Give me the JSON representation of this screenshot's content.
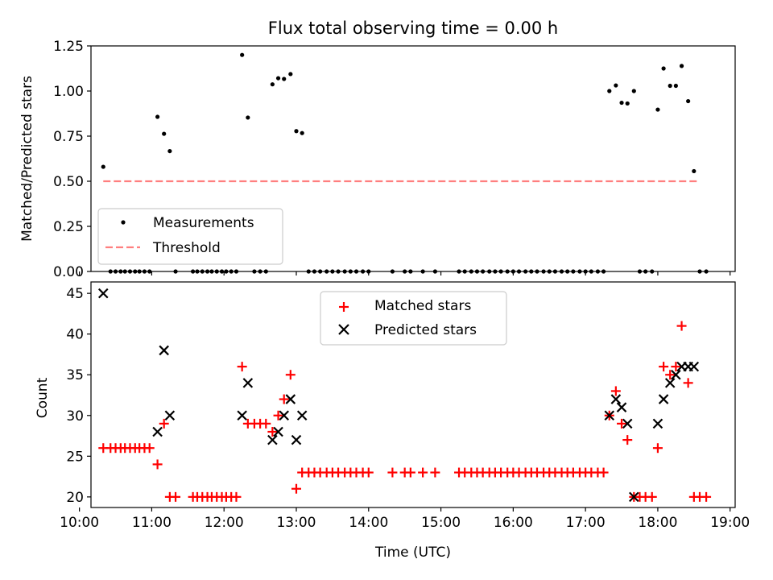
{
  "chart_data": [
    {
      "type": "scatter",
      "title": "Flux total observing time = 0.00 h",
      "xlabel": "",
      "ylabel": "Matched/Predicted stars",
      "xlim": [
        10.16,
        19.07
      ],
      "ylim": [
        0,
        1.25
      ],
      "x_ticks": [
        10,
        11,
        12,
        13,
        14,
        15,
        16,
        17,
        18,
        19
      ],
      "y_ticks": [
        0,
        0.25,
        0.5,
        0.75,
        1.0,
        1.25
      ],
      "y_tick_labels": [
        "0.00",
        "0.25",
        "0.50",
        "0.75",
        "1.00",
        "1.25"
      ],
      "legend_position": "lower-left",
      "series": [
        {
          "name": "Measurements",
          "marker": "dot",
          "color": "#000000",
          "points": [
            [
              10.33,
              0.58
            ],
            [
              10.43,
              0.0
            ],
            [
              10.5,
              0.0
            ],
            [
              10.57,
              0.0
            ],
            [
              10.63,
              0.0
            ],
            [
              10.7,
              0.0
            ],
            [
              10.77,
              0.0
            ],
            [
              10.83,
              0.0
            ],
            [
              10.9,
              0.0
            ],
            [
              10.97,
              0.0
            ],
            [
              11.08,
              0.857
            ],
            [
              11.17,
              0.763
            ],
            [
              11.25,
              0.667
            ],
            [
              11.33,
              0.0
            ],
            [
              11.57,
              0.0
            ],
            [
              11.63,
              0.0
            ],
            [
              11.7,
              0.0
            ],
            [
              11.77,
              0.0
            ],
            [
              11.83,
              0.0
            ],
            [
              11.9,
              0.0
            ],
            [
              11.97,
              0.0
            ],
            [
              12.03,
              0.0
            ],
            [
              12.1,
              0.0
            ],
            [
              12.17,
              0.0
            ],
            [
              12.25,
              1.2
            ],
            [
              12.33,
              0.853
            ],
            [
              12.42,
              0.0
            ],
            [
              12.5,
              0.0
            ],
            [
              12.58,
              0.0
            ],
            [
              12.67,
              1.037
            ],
            [
              12.75,
              1.071
            ],
            [
              12.83,
              1.067
            ],
            [
              12.92,
              1.094
            ],
            [
              13.0,
              0.778
            ],
            [
              13.08,
              0.767
            ],
            [
              13.17,
              0.0
            ],
            [
              13.25,
              0.0
            ],
            [
              13.33,
              0.0
            ],
            [
              13.42,
              0.0
            ],
            [
              13.5,
              0.0
            ],
            [
              13.58,
              0.0
            ],
            [
              13.67,
              0.0
            ],
            [
              13.75,
              0.0
            ],
            [
              13.83,
              0.0
            ],
            [
              13.92,
              0.0
            ],
            [
              14.0,
              0.0
            ],
            [
              14.33,
              0.0
            ],
            [
              14.5,
              0.0
            ],
            [
              14.58,
              0.0
            ],
            [
              14.75,
              0.0
            ],
            [
              14.92,
              0.0
            ],
            [
              15.25,
              0.0
            ],
            [
              15.33,
              0.0
            ],
            [
              15.42,
              0.0
            ],
            [
              15.5,
              0.0
            ],
            [
              15.58,
              0.0
            ],
            [
              15.67,
              0.0
            ],
            [
              15.75,
              0.0
            ],
            [
              15.83,
              0.0
            ],
            [
              15.92,
              0.0
            ],
            [
              16.0,
              0.0
            ],
            [
              16.08,
              0.0
            ],
            [
              16.17,
              0.0
            ],
            [
              16.25,
              0.0
            ],
            [
              16.33,
              0.0
            ],
            [
              16.42,
              0.0
            ],
            [
              16.5,
              0.0
            ],
            [
              16.58,
              0.0
            ],
            [
              16.67,
              0.0
            ],
            [
              16.75,
              0.0
            ],
            [
              16.83,
              0.0
            ],
            [
              16.92,
              0.0
            ],
            [
              17.0,
              0.0
            ],
            [
              17.08,
              0.0
            ],
            [
              17.17,
              0.0
            ],
            [
              17.25,
              0.0
            ],
            [
              17.33,
              1.0
            ],
            [
              17.42,
              1.031
            ],
            [
              17.5,
              0.935
            ],
            [
              17.58,
              0.931
            ],
            [
              17.67,
              1.0
            ],
            [
              17.75,
              0.0
            ],
            [
              17.83,
              0.0
            ],
            [
              17.92,
              0.0
            ],
            [
              18.0,
              0.897
            ],
            [
              18.08,
              1.125
            ],
            [
              18.17,
              1.029
            ],
            [
              18.25,
              1.029
            ],
            [
              18.33,
              1.139
            ],
            [
              18.42,
              0.944
            ],
            [
              18.5,
              0.556
            ],
            [
              18.58,
              0.0
            ],
            [
              18.67,
              0.0
            ]
          ]
        },
        {
          "name": "Threshold",
          "marker": "dashed-line",
          "color": "#ff7f7f",
          "points": [
            [
              10.33,
              0.5
            ],
            [
              18.58,
              0.5
            ]
          ]
        }
      ]
    },
    {
      "type": "scatter",
      "title": "",
      "xlabel": "Time (UTC)",
      "ylabel": "Count",
      "xlim": [
        10.16,
        19.07
      ],
      "ylim": [
        18.7,
        46.4
      ],
      "x_ticks": [
        10,
        11,
        12,
        13,
        14,
        15,
        16,
        17,
        18,
        19
      ],
      "x_tick_labels": [
        "10:00",
        "11:00",
        "12:00",
        "13:00",
        "14:00",
        "15:00",
        "16:00",
        "17:00",
        "18:00",
        "19:00"
      ],
      "y_ticks": [
        20,
        25,
        30,
        35,
        40,
        45
      ],
      "y_tick_labels": [
        "20",
        "25",
        "30",
        "35",
        "40",
        "45"
      ],
      "legend_position": "upper-center",
      "series": [
        {
          "name": "Matched stars",
          "marker": "plus",
          "color": "#ff0000",
          "points": [
            [
              10.33,
              26
            ],
            [
              10.43,
              26
            ],
            [
              10.5,
              26
            ],
            [
              10.57,
              26
            ],
            [
              10.63,
              26
            ],
            [
              10.7,
              26
            ],
            [
              10.77,
              26
            ],
            [
              10.83,
              26
            ],
            [
              10.9,
              26
            ],
            [
              10.97,
              26
            ],
            [
              11.08,
              24
            ],
            [
              11.17,
              29
            ],
            [
              11.25,
              20
            ],
            [
              11.33,
              20
            ],
            [
              11.57,
              20
            ],
            [
              11.63,
              20
            ],
            [
              11.7,
              20
            ],
            [
              11.77,
              20
            ],
            [
              11.83,
              20
            ],
            [
              11.9,
              20
            ],
            [
              11.97,
              20
            ],
            [
              12.03,
              20
            ],
            [
              12.1,
              20
            ],
            [
              12.17,
              20
            ],
            [
              12.25,
              36
            ],
            [
              12.33,
              29
            ],
            [
              12.42,
              29
            ],
            [
              12.5,
              29
            ],
            [
              12.58,
              29
            ],
            [
              12.67,
              28
            ],
            [
              12.75,
              30
            ],
            [
              12.83,
              32
            ],
            [
              12.92,
              35
            ],
            [
              13.0,
              21
            ],
            [
              13.08,
              23
            ],
            [
              13.17,
              23
            ],
            [
              13.25,
              23
            ],
            [
              13.33,
              23
            ],
            [
              13.42,
              23
            ],
            [
              13.5,
              23
            ],
            [
              13.58,
              23
            ],
            [
              13.67,
              23
            ],
            [
              13.75,
              23
            ],
            [
              13.83,
              23
            ],
            [
              13.92,
              23
            ],
            [
              14.0,
              23
            ],
            [
              14.33,
              23
            ],
            [
              14.5,
              23
            ],
            [
              14.58,
              23
            ],
            [
              14.75,
              23
            ],
            [
              14.92,
              23
            ],
            [
              15.25,
              23
            ],
            [
              15.33,
              23
            ],
            [
              15.42,
              23
            ],
            [
              15.5,
              23
            ],
            [
              15.58,
              23
            ],
            [
              15.67,
              23
            ],
            [
              15.75,
              23
            ],
            [
              15.83,
              23
            ],
            [
              15.92,
              23
            ],
            [
              16.0,
              23
            ],
            [
              16.08,
              23
            ],
            [
              16.17,
              23
            ],
            [
              16.25,
              23
            ],
            [
              16.33,
              23
            ],
            [
              16.42,
              23
            ],
            [
              16.5,
              23
            ],
            [
              16.58,
              23
            ],
            [
              16.67,
              23
            ],
            [
              16.75,
              23
            ],
            [
              16.83,
              23
            ],
            [
              16.92,
              23
            ],
            [
              17.0,
              23
            ],
            [
              17.08,
              23
            ],
            [
              17.17,
              23
            ],
            [
              17.25,
              23
            ],
            [
              17.33,
              30
            ],
            [
              17.42,
              33
            ],
            [
              17.5,
              29
            ],
            [
              17.58,
              27
            ],
            [
              17.67,
              20
            ],
            [
              17.75,
              20
            ],
            [
              17.83,
              20
            ],
            [
              17.92,
              20
            ],
            [
              18.0,
              26
            ],
            [
              18.08,
              36
            ],
            [
              18.17,
              35
            ],
            [
              18.25,
              36
            ],
            [
              18.33,
              41
            ],
            [
              18.42,
              34
            ],
            [
              18.5,
              20
            ],
            [
              18.58,
              20
            ],
            [
              18.67,
              20
            ]
          ]
        },
        {
          "name": "Predicted stars",
          "marker": "x",
          "color": "#000000",
          "points": [
            [
              10.33,
              45
            ],
            [
              11.08,
              28
            ],
            [
              11.17,
              38
            ],
            [
              11.25,
              30
            ],
            [
              12.25,
              30
            ],
            [
              12.33,
              34
            ],
            [
              12.67,
              27
            ],
            [
              12.75,
              28
            ],
            [
              12.83,
              30
            ],
            [
              12.92,
              32
            ],
            [
              13.0,
              27
            ],
            [
              13.08,
              30
            ],
            [
              17.33,
              30
            ],
            [
              17.42,
              32
            ],
            [
              17.5,
              31
            ],
            [
              17.58,
              29
            ],
            [
              17.67,
              20
            ],
            [
              18.0,
              29
            ],
            [
              18.08,
              32
            ],
            [
              18.17,
              34
            ],
            [
              18.25,
              35
            ],
            [
              18.33,
              36
            ],
            [
              18.42,
              36
            ],
            [
              18.5,
              36
            ]
          ]
        }
      ]
    }
  ]
}
